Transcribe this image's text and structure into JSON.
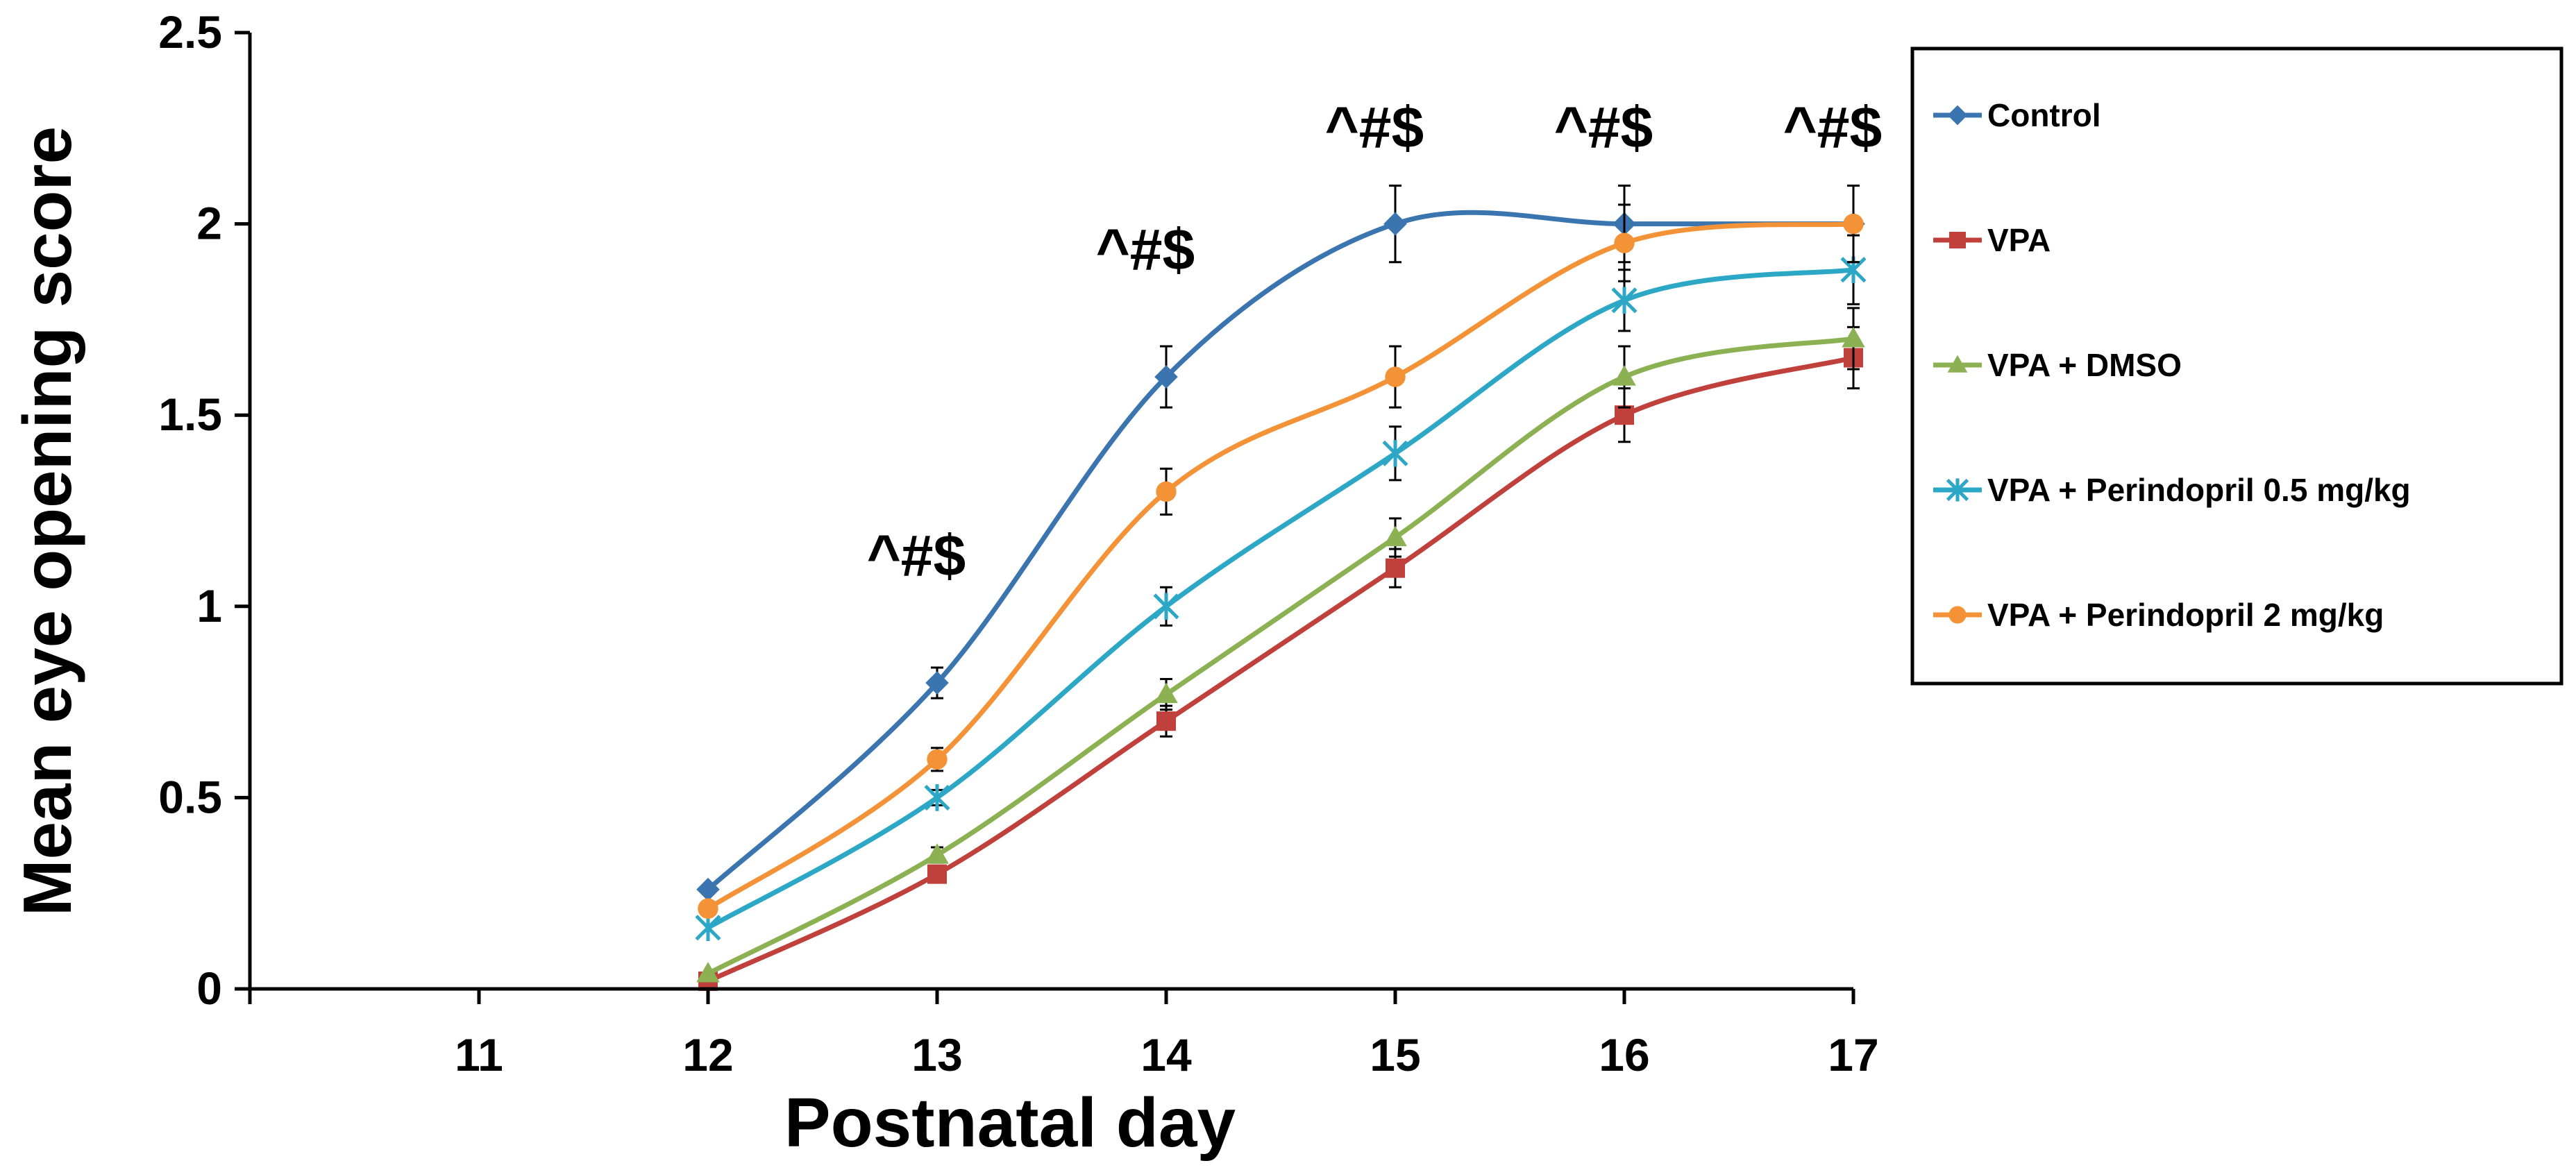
{
  "chart_data": {
    "type": "line",
    "title": "",
    "xlabel": "Postnatal day",
    "ylabel": "Mean eye opening score",
    "xlim": [
      10,
      17
    ],
    "ylim": [
      0,
      2.5
    ],
    "x_ticks": [
      11,
      12,
      13,
      14,
      15,
      16,
      17
    ],
    "y_ticks": [
      0,
      0.5,
      1,
      1.5,
      2,
      2.5
    ],
    "y_tick_labels": [
      "0",
      "0.5",
      "1",
      "1.5",
      "2",
      "2.5"
    ],
    "legend_position": "right",
    "annotations": [
      {
        "x": 13,
        "y": 1.08,
        "text": "^#$"
      },
      {
        "x": 14,
        "y": 1.88,
        "text": "^#$"
      },
      {
        "x": 15,
        "y": 2.2,
        "text": "^#$"
      },
      {
        "x": 16,
        "y": 2.2,
        "text": "^#$"
      },
      {
        "x": 17,
        "y": 2.2,
        "text": "^#$"
      }
    ],
    "x": [
      12,
      13,
      14,
      15,
      16,
      17
    ],
    "series": [
      {
        "name": "Control",
        "color": "#3a75b0",
        "marker": "diamond",
        "values": [
          0.26,
          0.8,
          1.6,
          2.0,
          2.0,
          2.0
        ],
        "errors": [
          0.0,
          0.04,
          0.08,
          0.1,
          0.1,
          0.1
        ]
      },
      {
        "name": "VPA",
        "color": "#c0403c",
        "marker": "square",
        "values": [
          0.02,
          0.3,
          0.7,
          1.1,
          1.5,
          1.65
        ],
        "errors": [
          0.0,
          0.0,
          0.04,
          0.05,
          0.07,
          0.08
        ]
      },
      {
        "name": "VPA + DMSO",
        "color": "#8bb152",
        "marker": "triangle",
        "values": [
          0.04,
          0.35,
          0.77,
          1.18,
          1.6,
          1.7
        ],
        "errors": [
          0.0,
          0.02,
          0.04,
          0.05,
          0.08,
          0.08
        ]
      },
      {
        "name": "VPA + Perindopril 0.5 mg/kg",
        "color": "#2ca7c6",
        "marker": "star",
        "values": [
          0.16,
          0.5,
          1.0,
          1.4,
          1.8,
          1.88
        ],
        "errors": [
          0.0,
          0.02,
          0.05,
          0.07,
          0.08,
          0.09
        ]
      },
      {
        "name": "VPA + Perindopril 2 mg/kg",
        "color": "#f39237",
        "marker": "circle",
        "values": [
          0.21,
          0.6,
          1.3,
          1.6,
          1.95,
          2.0
        ],
        "errors": [
          0.0,
          0.03,
          0.06,
          0.08,
          0.1,
          0.1
        ]
      }
    ]
  }
}
